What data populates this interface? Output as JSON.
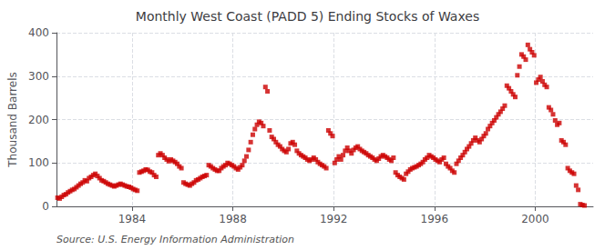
{
  "chart_data": {
    "type": "scatter",
    "title": "Monthly West Coast (PADD 5) Ending Stocks of Waxes",
    "ylabel": "Thousand Barrels",
    "annotation": "Source: U.S. Energy Information Administration",
    "color": "#CC0000",
    "marker": "square",
    "grid": true,
    "xlim": [
      1981.0,
      2002.3
    ],
    "xticks": [
      1984,
      1988,
      1992,
      1996,
      2000
    ],
    "ylim": [
      0,
      400
    ],
    "yticks": [
      0,
      100,
      200,
      300,
      400
    ],
    "x": [
      1981.0416666666667,
      1981.125,
      1981.2083333333333,
      1981.2916666666667,
      1981.375,
      1981.4583333333333,
      1981.5416666666667,
      1981.625,
      1981.7083333333333,
      1981.7916666666667,
      1981.875,
      1981.9583333333333,
      1982.0416666666667,
      1982.125,
      1982.2083333333333,
      1982.2916666666667,
      1982.375,
      1982.4583333333333,
      1982.5416666666667,
      1982.625,
      1982.7083333333333,
      1982.7916666666667,
      1982.875,
      1982.9583333333333,
      1983.0416666666667,
      1983.125,
      1983.2083333333333,
      1983.2916666666667,
      1983.375,
      1983.4583333333333,
      1983.5416666666667,
      1983.625,
      1983.7083333333333,
      1983.7916666666667,
      1983.875,
      1983.9583333333333,
      1984.0416666666667,
      1984.125,
      1984.2083333333333,
      1984.2916666666667,
      1984.375,
      1984.4583333333333,
      1984.5416666666667,
      1984.625,
      1984.7083333333333,
      1984.7916666666667,
      1984.875,
      1984.9583333333333,
      1985.0416666666667,
      1985.125,
      1985.2083333333333,
      1985.2916666666667,
      1985.375,
      1985.4583333333333,
      1985.5416666666667,
      1985.625,
      1985.7083333333333,
      1985.7916666666667,
      1985.875,
      1985.9583333333333,
      1986.0416666666667,
      1986.125,
      1986.2083333333333,
      1986.2916666666667,
      1986.375,
      1986.4583333333333,
      1986.5416666666667,
      1986.625,
      1986.7083333333333,
      1986.7916666666667,
      1986.875,
      1986.9583333333333,
      1987.0416666666667,
      1987.125,
      1987.2083333333333,
      1987.2916666666667,
      1987.375,
      1987.4583333333333,
      1987.5416666666667,
      1987.625,
      1987.7083333333333,
      1987.7916666666667,
      1987.875,
      1987.9583333333333,
      1988.0416666666667,
      1988.125,
      1988.2083333333333,
      1988.2916666666667,
      1988.375,
      1988.4583333333333,
      1988.5416666666667,
      1988.625,
      1988.7083333333333,
      1988.7916666666667,
      1988.875,
      1988.9583333333333,
      1989.0416666666667,
      1989.125,
      1989.2083333333333,
      1989.2916666666667,
      1989.375,
      1989.4583333333333,
      1989.5416666666667,
      1989.625,
      1989.7083333333333,
      1989.7916666666667,
      1989.875,
      1989.9583333333333,
      1990.0416666666667,
      1990.125,
      1990.2083333333333,
      1990.2916666666667,
      1990.375,
      1990.4583333333333,
      1990.5416666666667,
      1990.625,
      1990.7083333333333,
      1990.7916666666667,
      1990.875,
      1990.9583333333333,
      1991.0416666666667,
      1991.125,
      1991.2083333333333,
      1991.2916666666667,
      1991.375,
      1991.4583333333333,
      1991.5416666666667,
      1991.625,
      1991.7083333333333,
      1991.7916666666667,
      1991.875,
      1991.9583333333333,
      1992.0416666666667,
      1992.125,
      1992.2083333333333,
      1992.2916666666667,
      1992.375,
      1992.4583333333333,
      1992.5416666666667,
      1992.625,
      1992.7083333333333,
      1992.7916666666667,
      1992.875,
      1992.9583333333333,
      1993.0416666666667,
      1993.125,
      1993.2083333333333,
      1993.2916666666667,
      1993.375,
      1993.4583333333333,
      1993.5416666666667,
      1993.625,
      1993.7083333333333,
      1993.7916666666667,
      1993.875,
      1993.9583333333333,
      1994.0416666666667,
      1994.125,
      1994.2083333333333,
      1994.2916666666667,
      1994.375,
      1994.4583333333333,
      1994.5416666666667,
      1994.625,
      1994.7083333333333,
      1994.7916666666667,
      1994.875,
      1994.9583333333333,
      1995.0416666666667,
      1995.125,
      1995.2083333333333,
      1995.2916666666667,
      1995.375,
      1995.4583333333333,
      1995.5416666666667,
      1995.625,
      1995.7083333333333,
      1995.7916666666667,
      1995.875,
      1995.9583333333333,
      1996.0416666666667,
      1996.125,
      1996.2083333333333,
      1996.2916666666667,
      1996.375,
      1996.4583333333333,
      1996.5416666666667,
      1996.625,
      1996.7083333333333,
      1996.7916666666667,
      1996.875,
      1996.9583333333333,
      1997.0416666666667,
      1997.125,
      1997.2083333333333,
      1997.2916666666667,
      1997.375,
      1997.4583333333333,
      1997.5416666666667,
      1997.625,
      1997.7083333333333,
      1997.7916666666667,
      1997.875,
      1997.9583333333333,
      1998.0416666666667,
      1998.125,
      1998.2083333333333,
      1998.2916666666667,
      1998.375,
      1998.4583333333333,
      1998.5416666666667,
      1998.625,
      1998.7083333333333,
      1998.7916666666667,
      1998.875,
      1998.9583333333333,
      1999.0416666666667,
      1999.125,
      1999.2083333333333,
      1999.2916666666667,
      1999.375,
      1999.4583333333333,
      1999.5416666666667,
      1999.625,
      1999.7083333333333,
      1999.7916666666667,
      1999.875,
      1999.9583333333333,
      2000.0416666666667,
      2000.125,
      2000.2083333333333,
      2000.2916666666667,
      2000.375,
      2000.4583333333333,
      2000.5416666666667,
      2000.625,
      2000.7083333333333,
      2000.7916666666667,
      2000.875,
      2000.9583333333333,
      2001.0416666666667,
      2001.125,
      2001.2083333333333,
      2001.2916666666667,
      2001.375,
      2001.4583333333333,
      2001.5416666666667,
      2001.625,
      2001.7083333333333,
      2001.7916666666667,
      2001.875,
      2001.9583333333333
    ],
    "values": [
      20,
      18,
      22,
      26,
      28,
      32,
      35,
      38,
      40,
      44,
      48,
      52,
      55,
      60,
      58,
      65,
      68,
      72,
      75,
      70,
      65,
      60,
      58,
      55,
      52,
      50,
      48,
      46,
      48,
      50,
      52,
      50,
      48,
      46,
      45,
      43,
      40,
      38,
      36,
      78,
      80,
      82,
      85,
      84,
      80,
      78,
      72,
      68,
      118,
      122,
      118,
      112,
      108,
      104,
      108,
      105,
      102,
      98,
      92,
      88,
      55,
      52,
      50,
      48,
      52,
      55,
      60,
      62,
      65,
      68,
      70,
      72,
      95,
      92,
      88,
      85,
      82,
      82,
      88,
      92,
      95,
      100,
      98,
      95,
      92,
      88,
      85,
      90,
      95,
      105,
      115,
      130,
      148,
      165,
      178,
      188,
      195,
      192,
      185,
      275,
      265,
      175,
      160,
      155,
      148,
      142,
      138,
      132,
      128,
      125,
      132,
      145,
      148,
      142,
      128,
      122,
      118,
      115,
      112,
      108,
      105,
      108,
      112,
      108,
      102,
      98,
      95,
      92,
      88,
      175,
      168,
      162,
      100,
      108,
      115,
      108,
      118,
      128,
      135,
      128,
      122,
      130,
      135,
      138,
      132,
      128,
      125,
      122,
      118,
      115,
      112,
      108,
      105,
      110,
      115,
      118,
      115,
      112,
      108,
      105,
      112,
      78,
      72,
      68,
      65,
      62,
      75,
      80,
      85,
      88,
      90,
      92,
      95,
      98,
      102,
      108,
      112,
      118,
      115,
      112,
      108,
      105,
      102,
      108,
      112,
      98,
      92,
      88,
      82,
      78,
      98,
      105,
      112,
      118,
      125,
      132,
      138,
      145,
      152,
      158,
      152,
      148,
      155,
      162,
      168,
      178,
      185,
      192,
      198,
      205,
      212,
      218,
      225,
      232,
      278,
      272,
      265,
      258,
      252,
      302,
      322,
      350,
      345,
      338,
      372,
      362,
      355,
      348,
      285,
      292,
      298,
      288,
      280,
      275,
      228,
      222,
      212,
      198,
      188,
      192,
      152,
      148,
      142,
      88,
      82,
      78,
      75,
      48,
      38,
      5,
      3,
      2
    ]
  }
}
